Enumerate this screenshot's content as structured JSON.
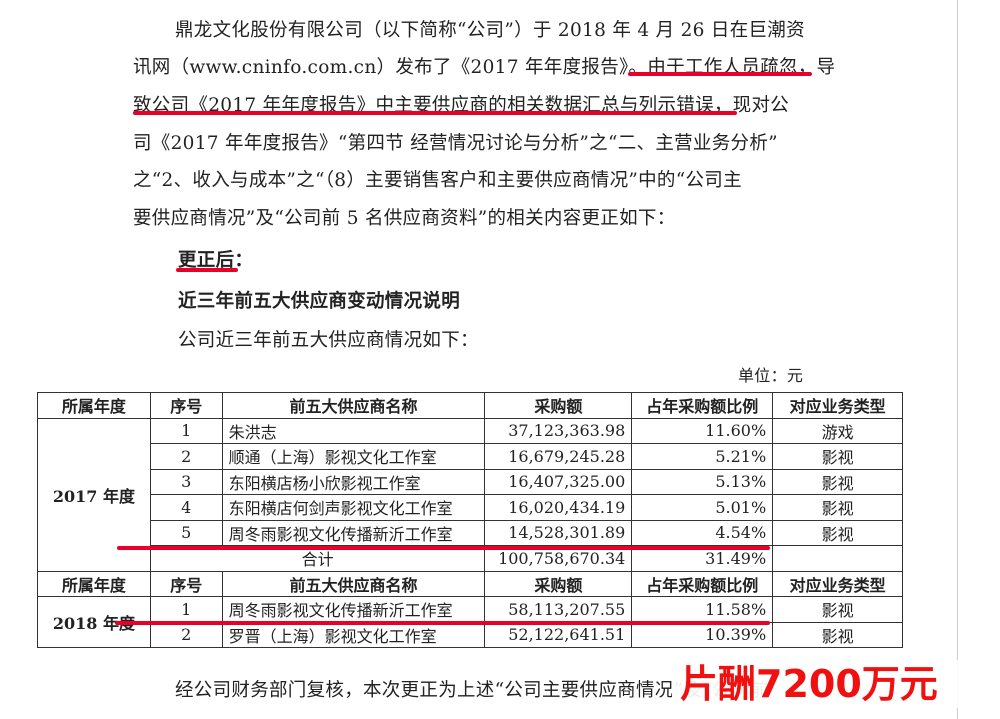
{
  "paragraph1": [
    "鼎龙文化股份有限公司（以下简称“公司”）于 2018 年 4 月 26 日在巨潮资",
    "讯网（www.cninfo.com.cn）发布了《2017 年年度报告》。",
    "由于工作人员疏忽，导",
    "致公司《2017 年年度报告》中主要供应商的相关数据汇总与列示错误",
    "，现对公",
    "司《2017 年年度报告》“第四节  经营情况讨论与分析”之“二、主营业务分析”",
    "之“2、收入与成本”之“（8）主要销售客户和主要供应商情况”中的“公司主",
    "要供应商情况”及“公司前 5 名供应商资料”的相关内容更正如下："
  ],
  "corrected_label": "更正后：",
  "section_title": "近三年前五大供应商变动情况说明",
  "intro": "公司近三年前五大供应商情况如下：",
  "unit": "单位：元",
  "table": {
    "headers": [
      "所属年度",
      "序号",
      "前五大供应商名称",
      "采购额",
      "占年采购额比例",
      "对应业务类型"
    ],
    "year2017": {
      "label": "2017 年度",
      "rows": [
        [
          "1",
          "朱洪志",
          "37,123,363.98",
          "11.60%",
          "游戏"
        ],
        [
          "2",
          "顺通（上海）影视文化工作室",
          "16,679,245.28",
          "5.21%",
          "影视"
        ],
        [
          "3",
          "东阳横店杨小欣影视工作室",
          "16,407,325.00",
          "5.13%",
          "影视"
        ],
        [
          "4",
          "东阳横店何剑声影视文化工作室",
          "16,020,434.19",
          "5.01%",
          "影视"
        ],
        [
          "5",
          "周冬雨影视文化传播新沂工作室",
          "14,528,301.89",
          "4.54%",
          "影视"
        ]
      ],
      "total": [
        "合计",
        "100,758,670.34",
        "31.49%"
      ]
    },
    "year2018": {
      "label": "2018 年度",
      "rows": [
        [
          "1",
          "周冬雨影视文化传播新沂工作室",
          "58,113,207.55",
          "11.58%",
          "影视"
        ],
        [
          "2",
          "罗晋（上海）影视文化工作室",
          "52,122,641.51",
          "10.39%",
          "影视"
        ]
      ]
    }
  },
  "bottom_text": "经公司财务部门复核，本次更正为上述“公司主要供应商情况”及“公司前",
  "overlay_caption": "片酬7200万元",
  "highlight_color": "#e8002a"
}
